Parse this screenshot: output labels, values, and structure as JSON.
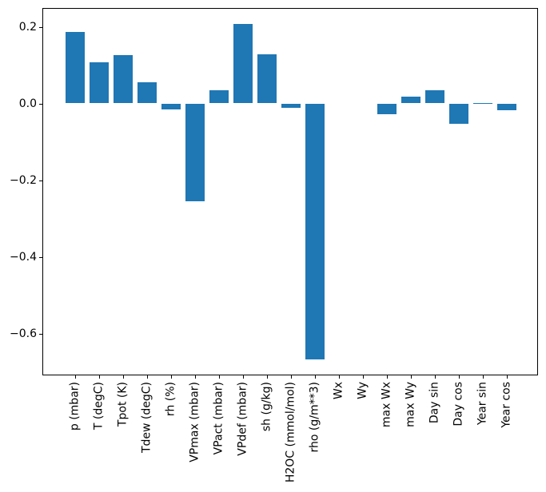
{
  "chart_data": {
    "type": "bar",
    "title": "",
    "xlabel": "",
    "ylabel": "",
    "categories": [
      "p (mbar)",
      "T (degC)",
      "Tpot (K)",
      "Tdew (degC)",
      "rh (%)",
      "VPmax (mbar)",
      "VPact (mbar)",
      "VPdef (mbar)",
      "sh (g/kg)",
      "H2OC (mmol/mol)",
      "rho (g/m**3)",
      "Wx",
      "Wy",
      "max Wx",
      "max Wy",
      "Day sin",
      "Day cos",
      "Year sin",
      "Year cos"
    ],
    "values": [
      0.187,
      0.108,
      0.126,
      0.055,
      -0.015,
      -0.256,
      0.034,
      0.207,
      0.129,
      -0.011,
      -0.667,
      0.0,
      0.0,
      -0.028,
      0.018,
      0.034,
      -0.054,
      0.002,
      -0.018
    ],
    "yticks": [
      0.2,
      0.0,
      -0.2,
      -0.4,
      -0.6
    ],
    "ytick_labels": [
      "0.2",
      "0.0",
      "−0.2",
      "−0.4",
      "−0.6"
    ],
    "ylim": [
      -0.711,
      0.249
    ],
    "grid": false,
    "legend": null,
    "bar_color": "#1f77b4",
    "axis_color": "#000000",
    "background_color": "#ffffff"
  }
}
